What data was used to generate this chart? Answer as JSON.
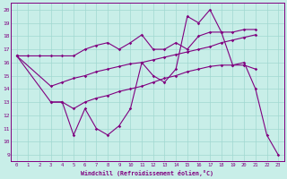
{
  "xlabel": "Windchill (Refroidissement éolien,°C)",
  "bg_color": "#c8eee8",
  "line_color": "#800080",
  "grid_color": "#a0d8d0",
  "xlim": [
    -0.5,
    23.5
  ],
  "ylim": [
    8.5,
    20.5
  ],
  "xticks": [
    0,
    1,
    2,
    3,
    4,
    5,
    6,
    7,
    8,
    9,
    10,
    11,
    12,
    13,
    14,
    15,
    16,
    17,
    18,
    19,
    20,
    21,
    22,
    23
  ],
  "yticks": [
    9,
    10,
    11,
    12,
    13,
    14,
    15,
    16,
    17,
    18,
    19,
    20
  ],
  "line1_x": [
    0,
    1,
    2,
    3,
    4,
    5,
    6,
    7,
    8,
    9,
    10,
    11,
    12,
    13,
    14,
    15,
    16,
    17,
    18,
    19,
    20,
    21
  ],
  "line1_y": [
    16.5,
    16.5,
    16.5,
    16.5,
    16.5,
    16.5,
    17.0,
    17.3,
    17.5,
    17.0,
    17.5,
    18.1,
    17.0,
    17.0,
    17.5,
    17.0,
    18.0,
    18.3,
    18.3,
    18.3,
    18.5,
    18.5
  ],
  "line2_x": [
    0,
    3,
    4,
    5,
    6,
    7,
    8,
    9,
    10,
    11,
    12,
    13,
    14,
    15,
    16,
    17,
    18,
    19,
    20,
    21
  ],
  "line2_y": [
    16.5,
    14.2,
    14.5,
    14.8,
    15.0,
    15.3,
    15.5,
    15.7,
    15.9,
    16.0,
    16.2,
    16.4,
    16.6,
    16.8,
    17.0,
    17.2,
    17.5,
    17.7,
    17.9,
    18.1
  ],
  "line3_x": [
    0,
    3,
    4,
    5,
    6,
    7,
    8,
    9,
    10,
    11,
    12,
    13,
    14,
    15,
    16,
    17,
    18,
    19,
    20,
    21,
    22,
    23
  ],
  "line3_y": [
    16.5,
    13.0,
    13.0,
    12.5,
    13.0,
    13.3,
    13.5,
    13.8,
    14.0,
    14.2,
    14.5,
    14.8,
    15.0,
    15.3,
    15.5,
    15.7,
    15.8,
    15.8,
    15.8,
    15.5,
    null,
    null
  ],
  "line4_x": [
    3,
    4,
    5,
    6,
    7,
    8,
    9,
    10,
    11,
    12,
    13,
    14,
    15,
    16,
    17,
    18,
    19,
    20,
    21,
    22,
    23
  ],
  "line4_y": [
    13.0,
    13.0,
    10.5,
    12.5,
    11.0,
    10.5,
    11.2,
    12.5,
    16.0,
    15.0,
    14.5,
    15.5,
    19.5,
    19.0,
    20.0,
    18.3,
    15.8,
    16.0,
    14.0,
    10.5,
    9.0
  ]
}
